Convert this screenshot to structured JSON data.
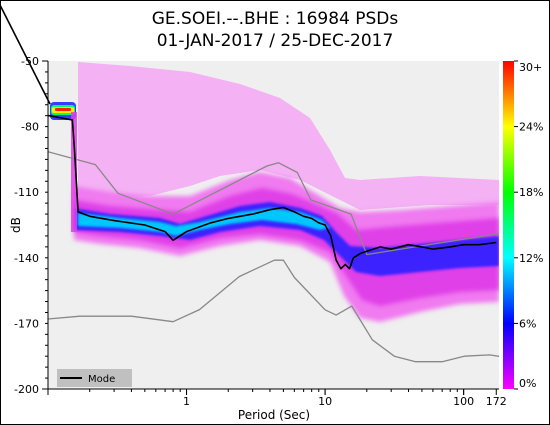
{
  "title_line1": "GE.SOEI.--.BHE : 16984 PSDs",
  "title_line2": "01-JAN-2017 / 25-DEC-2017",
  "chart_data": {
    "type": "heatmap",
    "subtype": "probabilistic-power-spectral-density",
    "xlabel": "Period (Sec)",
    "ylabel": "dB",
    "x_scale": "log",
    "xlim": [
      0.1,
      180
    ],
    "ylim": [
      -200,
      -50
    ],
    "x_ticks": [
      1,
      10,
      100,
      172
    ],
    "x_tick_labels": [
      "1",
      "10",
      "100",
      "172"
    ],
    "y_ticks": [
      -50,
      -80,
      -110,
      -140,
      -170,
      -200
    ],
    "y_tick_labels": [
      "-50",
      "-80",
      "-110",
      "-140",
      "-170",
      "-200"
    ],
    "colorbar": {
      "ticks": [
        0,
        6,
        12,
        18,
        24,
        30
      ],
      "tick_labels": [
        "0%",
        "6%",
        "12%",
        "18%",
        "24%",
        "30+"
      ],
      "colors": [
        "#ff00ff",
        "#0000ff",
        "#00ffff",
        "#00ff00",
        "#ffff00",
        "#ff0000"
      ]
    },
    "legend": {
      "position": "bottom-left",
      "entries": [
        "Mode"
      ]
    },
    "series": [
      {
        "name": "Mode",
        "color": "#000000",
        "x": [
          0.1,
          0.102,
          0.15,
          0.155,
          0.165,
          0.2,
          0.3,
          0.5,
          0.7,
          0.8,
          1.0,
          1.5,
          2.0,
          3.0,
          4.0,
          5.0,
          6.0,
          7.0,
          8.0,
          9.0,
          10.0,
          11.0,
          12.0,
          13.0,
          14.0,
          15.0,
          16.0,
          18.0,
          20.0,
          25.0,
          30.0,
          40.0,
          50.0,
          60.0,
          80.0,
          100.0,
          130.0,
          172.0
        ],
        "y": [
          -75,
          -75,
          -77,
          -90,
          -119,
          -121,
          -123,
          -125,
          -128,
          -132,
          -128,
          -124,
          -122,
          -120,
          -118,
          -117,
          -119,
          -121,
          -122,
          -124,
          -125,
          -130,
          -141,
          -145,
          -143,
          -145,
          -140,
          -138,
          -137,
          -135,
          -136,
          -134,
          -135,
          -136,
          -135,
          -134,
          -134,
          -133
        ]
      },
      {
        "name": "high-noise-model",
        "color": "#888888",
        "x": [
          0.1,
          0.22,
          0.32,
          0.8,
          3.8,
          4.6,
          6.3,
          7.9,
          15.4,
          20.0,
          354.8
        ],
        "y": [
          -91.5,
          -97.4,
          -110.5,
          -120.0,
          -98.0,
          -96.5,
          -101.0,
          -113.5,
          -120.0,
          -138.5,
          -126.0
        ]
      },
      {
        "name": "low-noise-model",
        "color": "#888888",
        "x": [
          0.1,
          0.17,
          0.4,
          0.8,
          1.24,
          2.4,
          4.3,
          5.0,
          6.0,
          10.0,
          12.0,
          15.6,
          21.9,
          31.6,
          45.0,
          70.0,
          101.0,
          154.0,
          328.0
        ],
        "y": [
          -168.0,
          -166.7,
          -166.7,
          -169.2,
          -163.7,
          -148.6,
          -141.1,
          -141.1,
          -149.0,
          -163.8,
          -166.2,
          -162.1,
          -177.5,
          -185.0,
          -187.5,
          -187.5,
          -185.0,
          -184.4,
          -187.5
        ]
      }
    ]
  }
}
